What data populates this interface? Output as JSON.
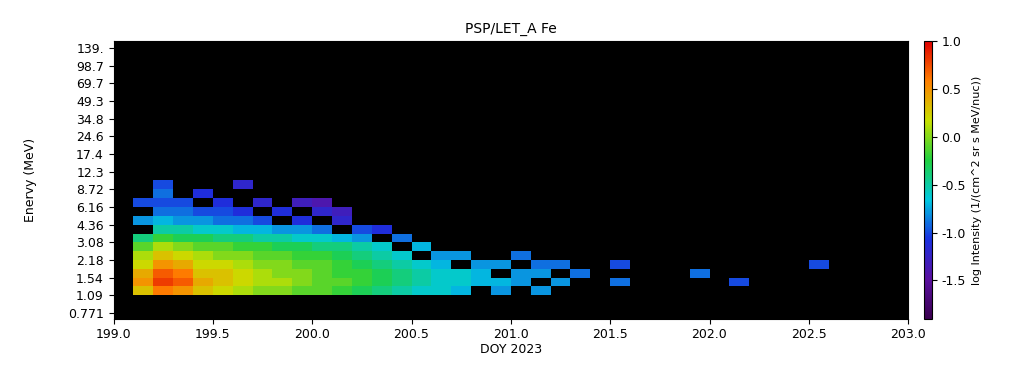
{
  "chart_data": {
    "type": "heatmap",
    "title": "PSP/LET_A Fe",
    "x_label": "DOY 2023",
    "y_label": "Enervy (MeV)",
    "colorbar_label": "log Intensity (1/(cm^2 sr s MeV/nuc))",
    "log": "y",
    "xlim": [
      199.0,
      203.0
    ],
    "xticks": [
      199.0,
      199.5,
      200.0,
      200.5,
      201.0,
      201.5,
      202.0,
      202.5,
      203.0
    ],
    "ylim": [
      0.69,
      159
    ],
    "yticks": [
      0.771,
      1.09,
      1.54,
      2.18,
      3.08,
      4.36,
      6.16,
      8.72,
      12.3,
      17.4,
      24.6,
      34.8,
      49.3,
      69.7,
      98.7,
      {
        "value": 139,
        "label": "139."
      }
    ],
    "colorbar_range": [
      -1.9,
      1.0
    ],
    "colorbar_ticks": [
      -1.5,
      -1.0,
      -0.5,
      0.0,
      0.5,
      1.0
    ],
    "x_edges": [
      199.1,
      199.2,
      199.3,
      199.4,
      199.5,
      199.6,
      199.7,
      199.8,
      199.9,
      200.0,
      200.1,
      200.2,
      200.3,
      200.4,
      200.5,
      200.6,
      200.7,
      200.8,
      200.9,
      201.0,
      201.1,
      201.2,
      201.3,
      201.4,
      201.5,
      201.6,
      201.7,
      201.8,
      201.9,
      202.0,
      202.1,
      202.2,
      202.3,
      202.4,
      202.5,
      202.6
    ],
    "y_edges": [
      1.09,
      1.3,
      1.54,
      1.83,
      2.18,
      2.59,
      3.08,
      3.66,
      4.36,
      5.18,
      6.16,
      7.33,
      8.72,
      10.4
    ],
    "cells": [
      [
        0.3,
        0.5,
        0.4,
        0.2,
        0.1,
        -0.1,
        -0.4,
        null,
        -0.8,
        null,
        -1.0,
        null,
        null
      ],
      [
        0.6,
        0.8,
        0.7,
        0.5,
        0.3,
        0.1,
        -0.2,
        -0.5,
        -0.7,
        -0.9,
        -1.0,
        -0.9,
        -1.0
      ],
      [
        0.5,
        0.7,
        0.6,
        0.4,
        0.2,
        0.0,
        -0.3,
        -0.5,
        -0.8,
        -0.9,
        -1.0,
        null,
        null
      ],
      [
        0.3,
        0.4,
        0.3,
        0.2,
        0.1,
        -0.1,
        -0.3,
        -0.6,
        -0.8,
        -1.0,
        null,
        -1.1,
        null
      ],
      [
        0.2,
        0.3,
        0.3,
        0.2,
        0.0,
        -0.1,
        -0.4,
        -0.6,
        -0.9,
        -1.0,
        -1.1,
        null,
        null
      ],
      [
        0.1,
        0.2,
        0.2,
        0.1,
        0.0,
        -0.2,
        -0.4,
        -0.7,
        -0.9,
        -1.1,
        null,
        null,
        -1.2
      ],
      [
        0.0,
        0.1,
        0.1,
        0.0,
        -0.1,
        -0.2,
        -0.5,
        -0.7,
        -1.0,
        null,
        -1.2,
        null,
        null
      ],
      [
        0.0,
        0.1,
        0.0,
        0.0,
        -0.1,
        -0.3,
        -0.5,
        -0.8,
        null,
        -1.1,
        null,
        null,
        null
      ],
      [
        -0.1,
        0.0,
        0.0,
        -0.1,
        -0.2,
        -0.3,
        -0.6,
        -0.8,
        -1.1,
        null,
        -1.3,
        null,
        null
      ],
      [
        -0.1,
        -0.1,
        -0.1,
        -0.1,
        -0.2,
        -0.4,
        -0.6,
        -0.9,
        null,
        -1.2,
        -1.4,
        null,
        null
      ],
      [
        -0.2,
        -0.1,
        -0.2,
        -0.2,
        -0.3,
        -0.4,
        -0.7,
        null,
        -1.2,
        -1.3,
        null,
        null,
        null
      ],
      [
        -0.3,
        -0.2,
        -0.2,
        -0.3,
        -0.4,
        -0.5,
        -0.8,
        -1.0,
        null,
        null,
        null,
        null,
        null
      ],
      [
        -0.4,
        -0.3,
        -0.3,
        -0.4,
        -0.5,
        -0.6,
        null,
        -1.1,
        null,
        null,
        null,
        null,
        null
      ],
      [
        -0.5,
        -0.4,
        -0.4,
        -0.5,
        -0.6,
        null,
        -0.9,
        null,
        null,
        null,
        null,
        null,
        null
      ],
      [
        -0.6,
        -0.5,
        -0.5,
        -0.6,
        null,
        -0.7,
        null,
        null,
        null,
        null,
        null,
        null,
        null
      ],
      [
        -0.6,
        -0.6,
        -0.6,
        -0.7,
        -0.8,
        null,
        null,
        null,
        null,
        null,
        null,
        null,
        null
      ],
      [
        -0.7,
        -0.6,
        -0.6,
        null,
        -0.8,
        null,
        null,
        null,
        null,
        null,
        null,
        null,
        null
      ],
      [
        null,
        -0.7,
        -0.7,
        -0.8,
        null,
        null,
        null,
        null,
        null,
        null,
        null,
        null,
        null
      ],
      [
        -0.8,
        -0.7,
        null,
        -0.8,
        null,
        null,
        null,
        null,
        null,
        null,
        null,
        null,
        null
      ],
      [
        null,
        -0.8,
        -0.8,
        null,
        -0.9,
        null,
        null,
        null,
        null,
        null,
        null,
        null,
        null
      ],
      [
        -0.8,
        null,
        -0.8,
        -0.9,
        null,
        null,
        null,
        null,
        null,
        null,
        null,
        null,
        null
      ],
      [
        null,
        -0.8,
        null,
        -0.9,
        null,
        null,
        null,
        null,
        null,
        null,
        null,
        null,
        null
      ],
      [
        null,
        null,
        -0.9,
        null,
        null,
        null,
        null,
        null,
        null,
        null,
        null,
        null,
        null
      ],
      [
        null,
        null,
        null,
        null,
        null,
        null,
        null,
        null,
        null,
        null,
        null,
        null,
        null
      ],
      [
        null,
        -0.9,
        null,
        -1.0,
        null,
        null,
        null,
        null,
        null,
        null,
        null,
        null,
        null
      ],
      [
        null,
        null,
        null,
        null,
        null,
        null,
        null,
        null,
        null,
        null,
        null,
        null,
        null
      ],
      [
        null,
        null,
        null,
        null,
        null,
        null,
        null,
        null,
        null,
        null,
        null,
        null,
        null
      ],
      [
        null,
        null,
        null,
        null,
        null,
        null,
        null,
        null,
        null,
        null,
        null,
        null,
        null
      ],
      [
        null,
        null,
        -0.9,
        null,
        null,
        null,
        null,
        null,
        null,
        null,
        null,
        null,
        null
      ],
      [
        null,
        null,
        null,
        null,
        null,
        null,
        null,
        null,
        null,
        null,
        null,
        null,
        null
      ],
      [
        null,
        -1.0,
        null,
        null,
        null,
        null,
        null,
        null,
        null,
        null,
        null,
        null,
        null
      ],
      [
        null,
        null,
        null,
        null,
        null,
        null,
        null,
        null,
        null,
        null,
        null,
        null,
        null
      ],
      [
        null,
        null,
        null,
        null,
        null,
        null,
        null,
        null,
        null,
        null,
        null,
        null,
        null
      ],
      [
        null,
        null,
        null,
        null,
        null,
        null,
        null,
        null,
        null,
        null,
        null,
        null,
        null
      ],
      [
        null,
        null,
        null,
        -1.0,
        null,
        null,
        null,
        null,
        null,
        null,
        null,
        null,
        null
      ]
    ]
  }
}
